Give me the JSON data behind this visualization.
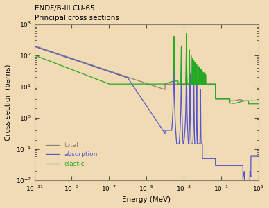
{
  "title_line1": "ENDF/B-III CU-65",
  "title_line2": "Principal cross sections",
  "xlabel": "Energy (MeV)",
  "ylabel": "Cross section (barns)",
  "xlim_log": [
    -11,
    1
  ],
  "ylim_log": [
    -2,
    3
  ],
  "background_color": "#f0dbb5",
  "plot_bg_color": "#f0dbb5",
  "color_total": "#888070",
  "color_absorption": "#5555cc",
  "color_elastic": "#22aa22",
  "legend_labels": [
    "total",
    "absorption",
    "elastic"
  ],
  "tick_color": "#555544",
  "figsize": [
    3.88,
    3.0
  ],
  "dpi": 100
}
